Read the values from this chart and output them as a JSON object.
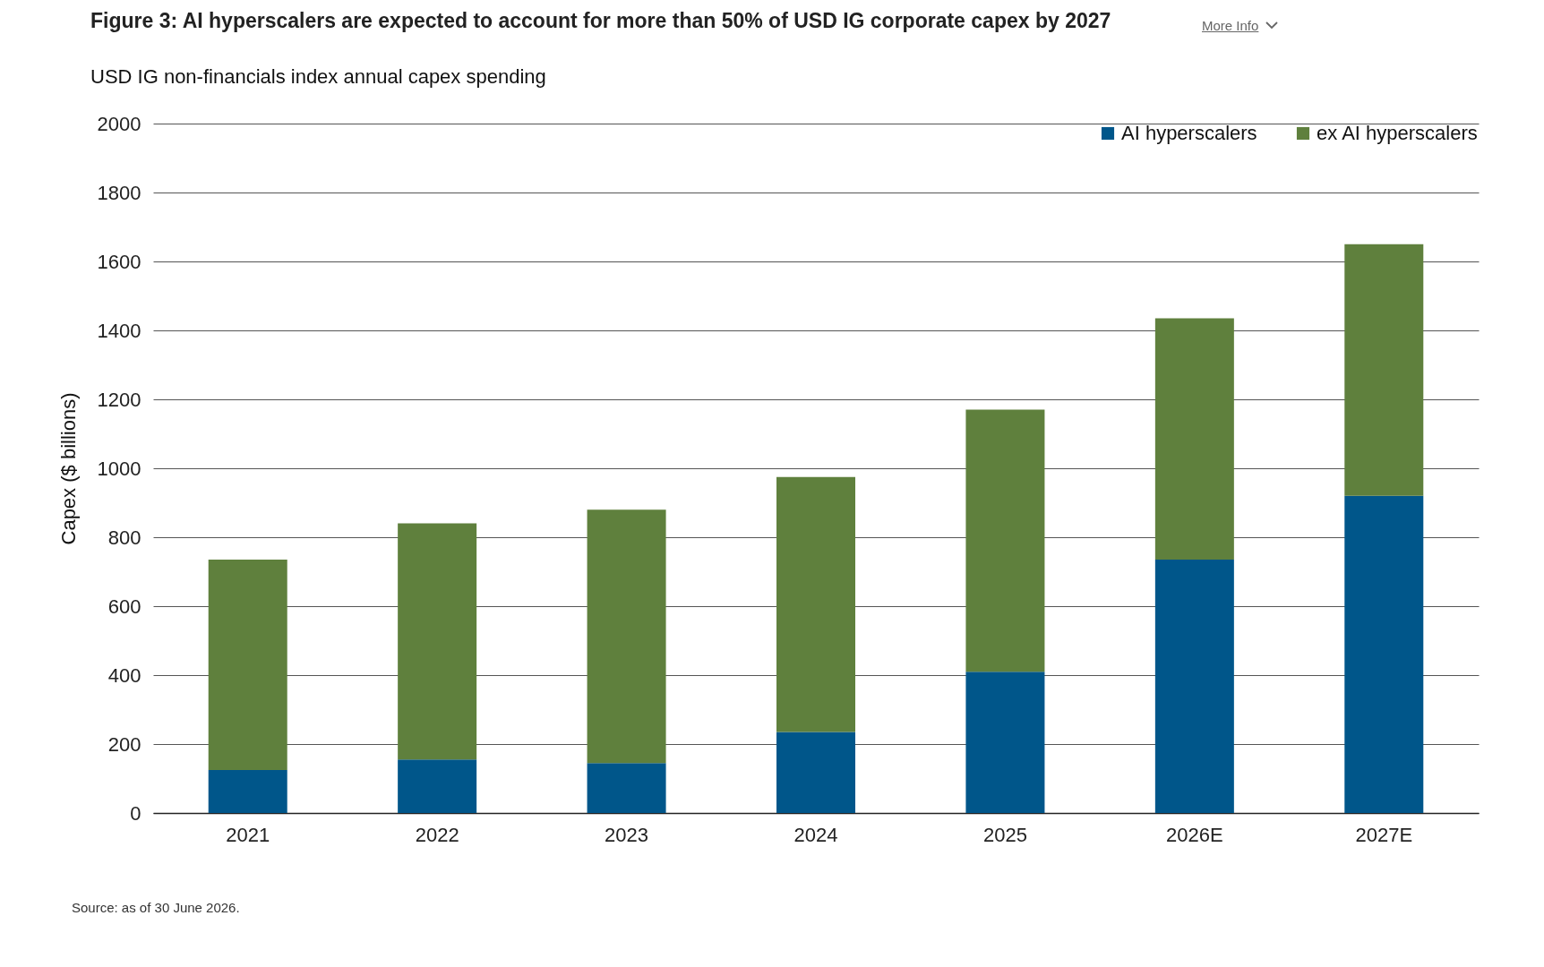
{
  "chart_data": {
    "type": "bar",
    "title": "Figure 3: AI hyperscalers are expected to account for more than 50% of USD IG corporate capex by 2027",
    "subtitle": "USD IG non-financials index annual capex spending",
    "ylabel": "Capex ($ billions)",
    "categories": [
      "2021",
      "2022",
      "2023",
      "2024",
      "2025",
      "2026E",
      "2027E"
    ],
    "series": [
      {
        "name": "AI hyperscalers",
        "color": "#00568a",
        "values": [
          125,
          155,
          145,
          235,
          410,
          735,
          920
        ]
      },
      {
        "name": "ex AI hyperscalers",
        "color": "#5f803d",
        "values": [
          610,
          685,
          735,
          740,
          760,
          700,
          730
        ]
      }
    ],
    "stacked": true,
    "ylim": [
      0,
      2000
    ],
    "yticks": [
      0,
      200,
      400,
      600,
      800,
      1000,
      1200,
      1400,
      1600,
      1800,
      2000
    ],
    "grid": "y",
    "legend": "top right",
    "annotations": [
      "More Info",
      "Source: as of 30 June 2026."
    ]
  }
}
